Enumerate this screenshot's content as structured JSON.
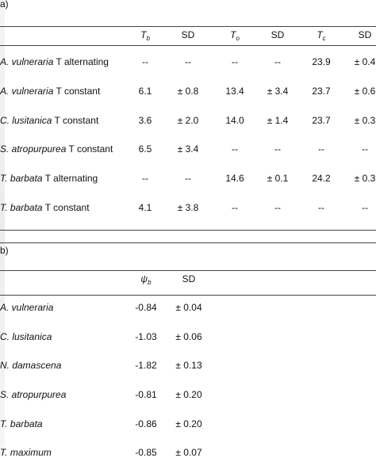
{
  "panel_a": {
    "label": "a)",
    "headers": [
      {
        "sym": "T",
        "sub": "b"
      },
      {
        "text": "SD"
      },
      {
        "sym": "T",
        "sub": "o"
      },
      {
        "text": "SD"
      },
      {
        "sym": "T",
        "sub": "c"
      },
      {
        "text": "SD"
      }
    ],
    "rows": [
      {
        "genus": "A. vulneraria",
        "treatment": " T alternating",
        "values": [
          "--",
          "--",
          "--",
          "--",
          "23.9",
          "± 0.4"
        ]
      },
      {
        "genus": "A. vulneraria",
        "treatment": " T constant",
        "values": [
          "6.1",
          "± 0.8",
          "13.4",
          "± 3.4",
          "23.7",
          "± 0.6"
        ]
      },
      {
        "genus": "C. lusitanica",
        "treatment": " T constant",
        "values": [
          "3.6",
          "± 2.0",
          "14.0",
          "± 1.4",
          "23.7",
          "± 0.3"
        ]
      },
      {
        "genus": "S. atropurpurea",
        "treatment": " T constant",
        "values": [
          "6.5",
          "± 3.4",
          "--",
          "--",
          "--",
          "--"
        ]
      },
      {
        "genus": "T. barbata",
        "treatment": " T alternating",
        "values": [
          "--",
          "--",
          "14.6",
          "± 0.1",
          "24.2",
          "± 0.3"
        ]
      },
      {
        "genus": "T. barbata",
        "treatment": " T constant",
        "values": [
          "4.1",
          "± 3.8",
          "--",
          "--",
          "--",
          "--"
        ]
      }
    ]
  },
  "panel_b": {
    "label": "b)",
    "headers": [
      {
        "sym": "ψ",
        "sub": "b"
      },
      {
        "text": "SD"
      }
    ],
    "rows": [
      {
        "genus": "A. vulneraria",
        "values": [
          "-0.84",
          "± 0.04"
        ]
      },
      {
        "genus": "C. lusitanica",
        "values": [
          "-1.03",
          "± 0.06"
        ]
      },
      {
        "genus": "N. damascena",
        "values": [
          "-1.82",
          "± 0.13"
        ]
      },
      {
        "genus": "S. atropurpurea",
        "values": [
          "-0.81",
          "± 0.20"
        ]
      },
      {
        "genus": "T. barbata",
        "values": [
          "-0.86",
          "± 0.20"
        ]
      },
      {
        "genus": "T. maximum",
        "values": [
          "-0.85",
          "± 0.07"
        ]
      }
    ]
  }
}
